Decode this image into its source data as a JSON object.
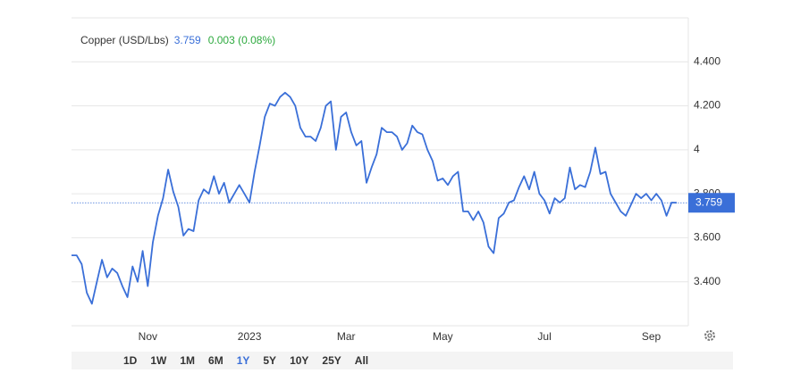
{
  "chart_data": {
    "type": "line",
    "series": [
      {
        "name": "Copper (USD/Lbs)",
        "color": "#3a6fd8",
        "values": [
          3.52,
          3.52,
          3.48,
          3.35,
          3.3,
          3.4,
          3.5,
          3.42,
          3.46,
          3.44,
          3.38,
          3.33,
          3.47,
          3.4,
          3.54,
          3.38,
          3.58,
          3.7,
          3.78,
          3.91,
          3.81,
          3.74,
          3.61,
          3.64,
          3.63,
          3.77,
          3.82,
          3.8,
          3.88,
          3.8,
          3.85,
          3.76,
          3.8,
          3.84,
          3.8,
          3.76,
          3.9,
          4.02,
          4.15,
          4.21,
          4.2,
          4.24,
          4.26,
          4.24,
          4.2,
          4.1,
          4.06,
          4.06,
          4.04,
          4.1,
          4.2,
          4.22,
          4.0,
          4.15,
          4.17,
          4.08,
          4.02,
          4.04,
          3.85,
          3.92,
          3.98,
          4.1,
          4.08,
          4.08,
          4.06,
          4.0,
          4.03,
          4.11,
          4.08,
          4.07,
          4.0,
          3.95,
          3.86,
          3.87,
          3.84,
          3.88,
          3.9,
          3.72,
          3.72,
          3.68,
          3.72,
          3.67,
          3.56,
          3.53,
          3.69,
          3.71,
          3.76,
          3.77,
          3.83,
          3.88,
          3.82,
          3.9,
          3.8,
          3.77,
          3.71,
          3.78,
          3.76,
          3.78,
          3.92,
          3.82,
          3.84,
          3.83,
          3.9,
          4.01,
          3.89,
          3.9,
          3.8,
          3.76,
          3.72,
          3.7,
          3.75,
          3.8,
          3.78,
          3.8,
          3.77,
          3.8,
          3.77,
          3.7,
          3.76,
          3.759
        ]
      }
    ],
    "categories": [
      null,
      null,
      null,
      null,
      null,
      null,
      null,
      null,
      null,
      null,
      null,
      null,
      null,
      null,
      null,
      "Nov",
      null,
      null,
      null,
      null,
      null,
      null,
      null,
      null,
      null,
      null,
      null,
      null,
      null,
      null,
      null,
      null,
      null,
      null,
      null,
      "2023",
      null,
      null,
      null,
      null,
      null,
      null,
      null,
      null,
      null,
      null,
      null,
      null,
      null,
      null,
      null,
      null,
      null,
      null,
      "Mar",
      null,
      null,
      null,
      null,
      null,
      null,
      null,
      null,
      null,
      null,
      null,
      null,
      null,
      null,
      null,
      null,
      null,
      null,
      "May",
      null,
      null,
      null,
      null,
      null,
      null,
      null,
      null,
      null,
      null,
      null,
      null,
      null,
      null,
      null,
      null,
      null,
      null,
      null,
      "Jul",
      null,
      null,
      null,
      null,
      null,
      null,
      null,
      null,
      null,
      null,
      null,
      null,
      null,
      null,
      null,
      null,
      null,
      null,
      null,
      null,
      "Sep",
      null,
      null,
      null,
      null,
      null
    ],
    "ylim": [
      3.2,
      4.6
    ],
    "yticks": [
      {
        "value": 3.4,
        "label": "3.400"
      },
      {
        "value": 3.6,
        "label": "3.600"
      },
      {
        "value": 3.8,
        "label": "3.800"
      },
      4,
      {
        "value": 4.2,
        "label": "4.200"
      },
      {
        "value": 4.4,
        "label": "4.400"
      }
    ],
    "grid": true,
    "last_price": 3.759,
    "last_price_color": "#3a6fd8",
    "change": "0.003 (0.08%)",
    "change_color": "#2eaa3f",
    "range_buttons": [
      "1D",
      "1W",
      "1M",
      "6M",
      "1Y",
      "5Y",
      "10Y",
      "25Y",
      "All"
    ],
    "selected_range": "1Y"
  }
}
